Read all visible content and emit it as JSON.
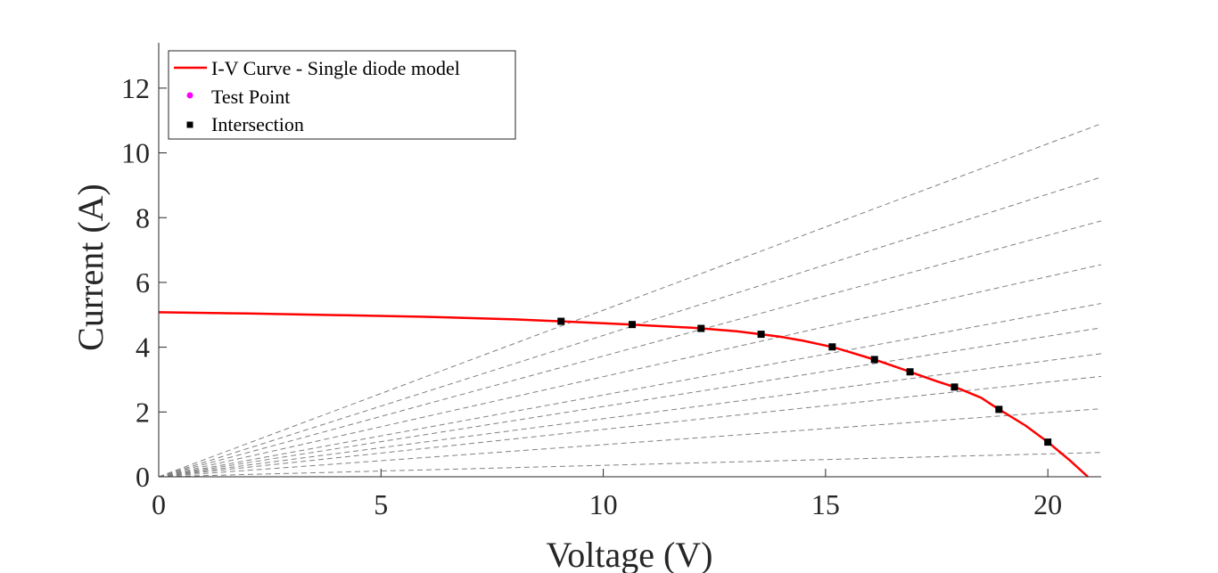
{
  "chart_data": {
    "type": "line",
    "title": "",
    "xlabel": "Voltage (V)",
    "ylabel": "Current (A)",
    "xlim": [
      0,
      21.2
    ],
    "ylim": [
      0,
      13.4
    ],
    "xticks": [
      "0",
      "5",
      "10",
      "15",
      "20"
    ],
    "xtick_values": [
      0,
      5,
      10,
      15,
      20
    ],
    "yticks": [
      "0",
      "2",
      "4",
      "6",
      "8",
      "10",
      "12"
    ],
    "ytick_values": [
      0,
      2,
      4,
      6,
      8,
      10,
      12
    ],
    "grid": false,
    "legend_position": "top-left",
    "legend": [
      {
        "label": "I-V Curve - Single diode model",
        "kind": "line",
        "color": "#ff0000"
      },
      {
        "label": "Test Point",
        "kind": "dot",
        "color": "#ff00ff"
      },
      {
        "label": "Intersection",
        "kind": "square",
        "color": "#000000"
      }
    ],
    "series": [
      {
        "name": "I-V Curve - Single diode model",
        "color": "#ff0000",
        "x": [
          0,
          2,
          4,
          6,
          8,
          9.05,
          10,
          10.65,
          11,
          12,
          12.2,
          13,
          13.55,
          14,
          14.5,
          15,
          15.15,
          15.5,
          16,
          16.1,
          16.5,
          16.9,
          17,
          17.5,
          17.9,
          18,
          18.5,
          18.9,
          19,
          19.5,
          20,
          20.5,
          20.9
        ],
        "y": [
          5.08,
          5.04,
          4.99,
          4.94,
          4.86,
          4.8,
          4.74,
          4.7,
          4.67,
          4.6,
          4.58,
          4.49,
          4.4,
          4.32,
          4.2,
          4.05,
          4.01,
          3.87,
          3.66,
          3.62,
          3.43,
          3.24,
          3.19,
          2.95,
          2.77,
          2.72,
          2.44,
          2.08,
          2.0,
          1.58,
          1.07,
          0.5,
          0.0
        ]
      },
      {
        "name": "Intersection",
        "color": "#000000",
        "x": [
          9.05,
          10.65,
          12.2,
          13.55,
          15.15,
          16.1,
          16.9,
          17.9,
          18.9,
          20.0
        ],
        "y": [
          4.8,
          4.7,
          4.58,
          4.4,
          4.01,
          3.62,
          3.24,
          2.77,
          2.08,
          1.07
        ]
      }
    ],
    "load_lines": {
      "color": "#808080",
      "x_end": 21.2,
      "y_end": [
        10.9,
        9.25,
        7.9,
        6.55,
        5.35,
        4.6,
        3.8,
        3.1,
        2.1,
        0.75
      ]
    }
  }
}
